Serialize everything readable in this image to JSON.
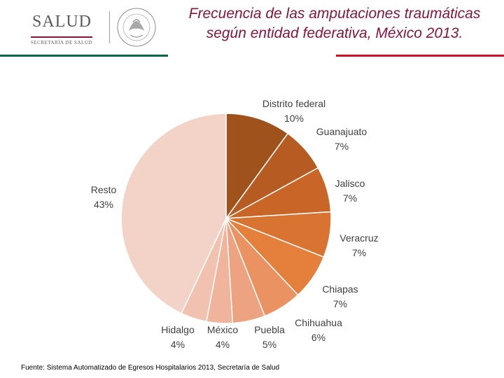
{
  "header": {
    "logo_text": "SALUD",
    "logo_subtext": "SECRETARÍA DE SALUD",
    "seal_text": "ESTADOS UNIDOS MEXICANOS",
    "stripe_colors": [
      "#006847",
      "#ffffff",
      "#ce1126"
    ]
  },
  "chart_data": {
    "type": "pie",
    "title": "Frecuencia de las amputaciones traumáticas según entidad federativa, México 2013.",
    "title_lines": [
      "Frecuencia de las amputaciones traumáticas",
      "según entidad federativa, México 2013."
    ],
    "unit": "%",
    "start_angle_deg": 0,
    "direction": "clockwise",
    "slices": [
      {
        "name": "Distrito federal",
        "value": 10,
        "color": "#a0521d"
      },
      {
        "name": "Guanajuato",
        "value": 7,
        "color": "#b65c22"
      },
      {
        "name": "Jalisco",
        "value": 7,
        "color": "#c96627"
      },
      {
        "name": "Veracruz",
        "value": 7,
        "color": "#d97331"
      },
      {
        "name": "Chiapas",
        "value": 7,
        "color": "#e47f3c"
      },
      {
        "name": "Chihuahua",
        "value": 6,
        "color": "#ea9261"
      },
      {
        "name": "Puebla",
        "value": 5,
        "color": "#eda381"
      },
      {
        "name": "México",
        "value": 4,
        "color": "#f0b49d"
      },
      {
        "name": "Hidalgo",
        "value": 4,
        "color": "#f2c2b0"
      },
      {
        "name": "Resto",
        "value": 43,
        "color": "#f3d3c8"
      }
    ]
  },
  "source": "Fuente: Sistema Automatizado de Egresos Hospitalarios 2013, Secretaría de Salud"
}
